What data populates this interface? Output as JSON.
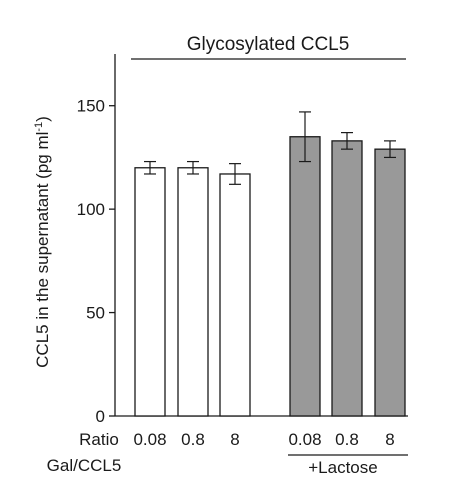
{
  "chart_data": {
    "type": "bar",
    "title": "Glycosylated CCL5",
    "ylabel": "CCL5 in the supernatant (pg ml",
    "ylabel_sup": "-1",
    "ylabel_close": ")",
    "ylim": [
      0,
      175
    ],
    "yticks": [
      0,
      50,
      100,
      150
    ],
    "grid": false,
    "x_row_labels": [
      "Ratio",
      "Gal/CCL5"
    ],
    "categories": [
      "0.08",
      "0.8",
      "8",
      "0.08",
      "0.8",
      "8"
    ],
    "values": [
      120,
      120,
      117,
      135,
      133,
      129
    ],
    "errors": [
      3,
      3,
      5,
      12,
      4,
      4
    ],
    "groups": [
      {
        "label": "",
        "bar_indices": [
          0,
          1,
          2
        ],
        "fill": "#ffffff"
      },
      {
        "label": "+Lactose",
        "bar_indices": [
          3,
          4,
          5
        ],
        "fill": "#999999"
      }
    ]
  }
}
